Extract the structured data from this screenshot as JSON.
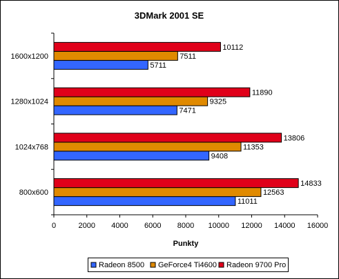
{
  "chart_data": {
    "type": "bar",
    "orientation": "horizontal",
    "title": "3DMark 2001 SE",
    "xlabel": "Punkty",
    "ylabel": "",
    "xlim": [
      0,
      16000
    ],
    "x_ticks": [
      0,
      2000,
      4000,
      6000,
      8000,
      10000,
      12000,
      14000,
      16000
    ],
    "grid": false,
    "legend_position": "bottom",
    "categories": [
      "1600x1200",
      "1280x1024",
      "1024x768",
      "800x600"
    ],
    "series": [
      {
        "name": "Radeon 8500",
        "color": "#3366ff",
        "values": [
          5711,
          7471,
          9408,
          11011
        ]
      },
      {
        "name": "GeForce4 Ti4600",
        "color": "#e08a00",
        "values": [
          7511,
          9325,
          11353,
          12563
        ]
      },
      {
        "name": "Radeon 9700 Pro",
        "color": "#e0001a",
        "values": [
          10112,
          11890,
          13806,
          14833
        ]
      }
    ]
  }
}
